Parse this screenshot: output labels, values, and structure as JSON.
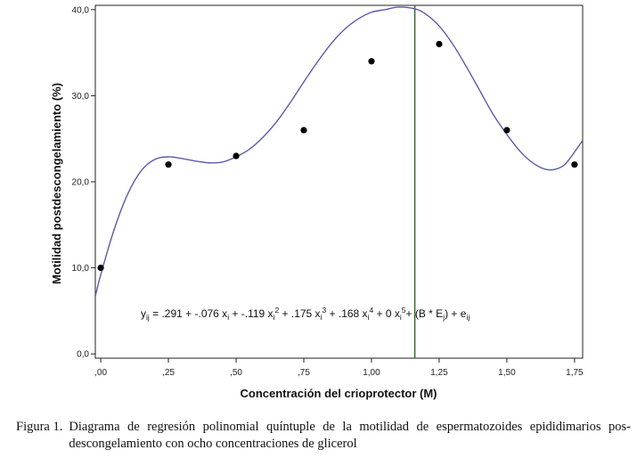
{
  "chart_data": {
    "type": "scatter",
    "title": "",
    "xlabel": "Concentración del crioprotector (M)",
    "ylabel": "Motilidad postdescongelamiento (%)",
    "xlim": [
      -0.02,
      1.78
    ],
    "ylim": [
      -0.5,
      40.5
    ],
    "x_ticks": [
      0,
      0.25,
      0.5,
      0.75,
      1.0,
      1.25,
      1.5,
      1.75
    ],
    "x_tick_labels": [
      ",00",
      ",25",
      ",50",
      ",75",
      "1,00",
      "1,25",
      "1,50",
      "1,75"
    ],
    "y_ticks": [
      0,
      10,
      20,
      30,
      40
    ],
    "y_tick_labels": [
      "0,0",
      "10,0",
      "20,0",
      "30,0",
      "40,0"
    ],
    "points": [
      {
        "x": 0.0,
        "y": 10
      },
      {
        "x": 0.25,
        "y": 22
      },
      {
        "x": 0.5,
        "y": 23
      },
      {
        "x": 0.75,
        "y": 26
      },
      {
        "x": 1.0,
        "y": 34
      },
      {
        "x": 1.25,
        "y": 36
      },
      {
        "x": 1.5,
        "y": 26
      },
      {
        "x": 1.75,
        "y": 22
      }
    ],
    "fit_curve": {
      "name": "quintic polynomial fit",
      "color": "#5b5ba8",
      "x": [
        -0.02,
        0.0,
        0.05,
        0.1,
        0.15,
        0.2,
        0.25,
        0.3,
        0.35,
        0.4,
        0.45,
        0.5,
        0.55,
        0.6,
        0.65,
        0.7,
        0.75,
        0.8,
        0.85,
        0.9,
        0.95,
        1.0,
        1.05,
        1.1,
        1.16,
        1.2,
        1.25,
        1.3,
        1.35,
        1.4,
        1.45,
        1.5,
        1.55,
        1.6,
        1.65,
        1.7,
        1.73,
        1.78
      ],
      "y": [
        6.7,
        9.2,
        14.5,
        18.6,
        21.3,
        22.6,
        22.9,
        22.7,
        22.4,
        22.2,
        22.3,
        22.9,
        23.8,
        25.2,
        27.0,
        29.2,
        31.6,
        33.9,
        36.0,
        37.7,
        38.9,
        39.7,
        40.0,
        40.3,
        40.1,
        39.5,
        38.1,
        36.0,
        33.4,
        30.6,
        27.8,
        25.5,
        23.5,
        22.1,
        21.4,
        21.7,
        22.6,
        24.8
      ]
    },
    "reference_line": {
      "x": 1.16,
      "color": "#2e6b2e"
    },
    "equation": {
      "y": "y",
      "y_sub": "ij",
      "parts": [
        {
          "t": " = .291 + -.076 x"
        },
        {
          "sub": "i"
        },
        {
          "t": " + -.119 x"
        },
        {
          "sub": "i"
        },
        {
          "sup": "2"
        },
        {
          "t": " + .175 x"
        },
        {
          "sub": "i"
        },
        {
          "sup": "3"
        },
        {
          "t": " + .168 x"
        },
        {
          "sub": "i"
        },
        {
          "sup": "4"
        },
        {
          "t": " + 0 x"
        },
        {
          "sub": "i"
        },
        {
          "sup": "5"
        },
        {
          "t": "+ (B * E"
        },
        {
          "sub": "j"
        },
        {
          "t": ") + e"
        },
        {
          "sub": "ij"
        }
      ]
    }
  },
  "caption": {
    "label": "Figura 1.",
    "text": "Diagrama de regresión polinomial quíntuple de la motilidad de espermatozoides epididimarios pos-descongelamiento con ocho concentraciones de glicerol"
  }
}
